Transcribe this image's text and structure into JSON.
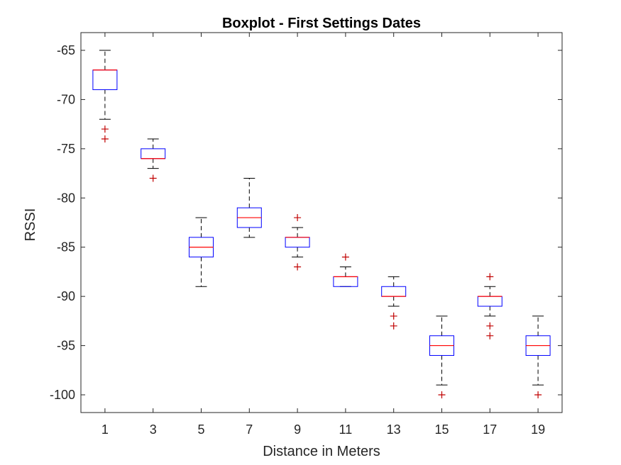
{
  "chart_data": {
    "type": "boxplot",
    "title": "Boxplot - First Settings Dates",
    "xlabel": "Distance in Meters",
    "ylabel": "RSSI",
    "ylim": [
      -101.8,
      -63.2
    ],
    "yticks": [
      -65,
      -70,
      -75,
      -80,
      -85,
      -90,
      -95,
      -100
    ],
    "categories": [
      "1",
      "3",
      "5",
      "7",
      "9",
      "11",
      "13",
      "15",
      "17",
      "19"
    ],
    "box_color": "#0000ff",
    "median_color": "#ff0000",
    "whisker_color": "#000000",
    "outlier_color": "#c00000",
    "boxes": [
      {
        "category": "1",
        "whisker_low": -72,
        "q1": -69,
        "median": -67,
        "q3": -67,
        "whisker_high": -65,
        "outliers": [
          -73,
          -74
        ]
      },
      {
        "category": "3",
        "whisker_low": -77,
        "q1": -76,
        "median": -76,
        "q3": -75,
        "whisker_high": -74,
        "outliers": [
          -78
        ]
      },
      {
        "category": "5",
        "whisker_low": -89,
        "q1": -86,
        "median": -85,
        "q3": -84,
        "whisker_high": -82,
        "outliers": []
      },
      {
        "category": "7",
        "whisker_low": -84,
        "q1": -83,
        "median": -82,
        "q3": -81,
        "whisker_high": -78,
        "outliers": []
      },
      {
        "category": "9",
        "whisker_low": -86,
        "q1": -85,
        "median": -84,
        "q3": -84,
        "whisker_high": -83,
        "outliers": [
          -82,
          -87
        ]
      },
      {
        "category": "11",
        "whisker_low": -89,
        "q1": -89,
        "median": -88,
        "q3": -88,
        "whisker_high": -87,
        "outliers": [
          -86
        ]
      },
      {
        "category": "13",
        "whisker_low": -91,
        "q1": -90,
        "median": -90,
        "q3": -89,
        "whisker_high": -88,
        "outliers": [
          -92,
          -93
        ]
      },
      {
        "category": "15",
        "whisker_low": -99,
        "q1": -96,
        "median": -95,
        "q3": -94,
        "whisker_high": -92,
        "outliers": [
          -100
        ]
      },
      {
        "category": "17",
        "whisker_low": -92,
        "q1": -91,
        "median": -90,
        "q3": -90,
        "whisker_high": -89,
        "outliers": [
          -88,
          -93,
          -94
        ]
      },
      {
        "category": "19",
        "whisker_low": -99,
        "q1": -96,
        "median": -95,
        "q3": -94,
        "whisker_high": -92,
        "outliers": [
          -100
        ]
      }
    ]
  }
}
